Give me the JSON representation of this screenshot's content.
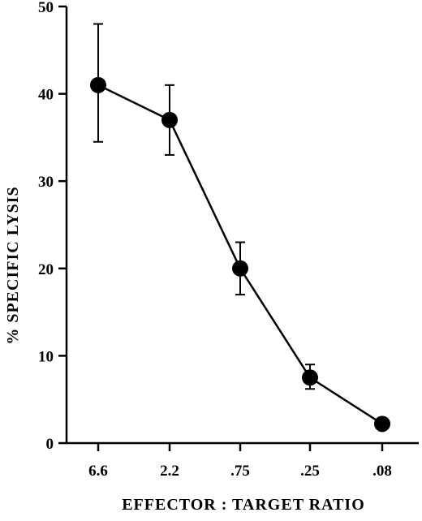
{
  "chart_data": {
    "type": "line",
    "title": "",
    "xlabel": "EFFECTOR : TARGET RATIO",
    "ylabel": "% SPECIFIC LYSIS",
    "categories": [
      "6.6",
      "2.2",
      ".75",
      ".25",
      ".08"
    ],
    "y_ticks": [
      "0",
      "10",
      "20",
      "30",
      "40",
      "50"
    ],
    "ylim": [
      0,
      50
    ],
    "grid": false,
    "legend": "none",
    "series": [
      {
        "values": [
          41,
          37,
          20,
          7.5,
          2.2
        ],
        "error_upper": [
          48,
          41,
          23,
          9,
          2.2
        ],
        "error_lower": [
          34.5,
          33,
          17,
          6.2,
          2.2
        ]
      }
    ]
  }
}
